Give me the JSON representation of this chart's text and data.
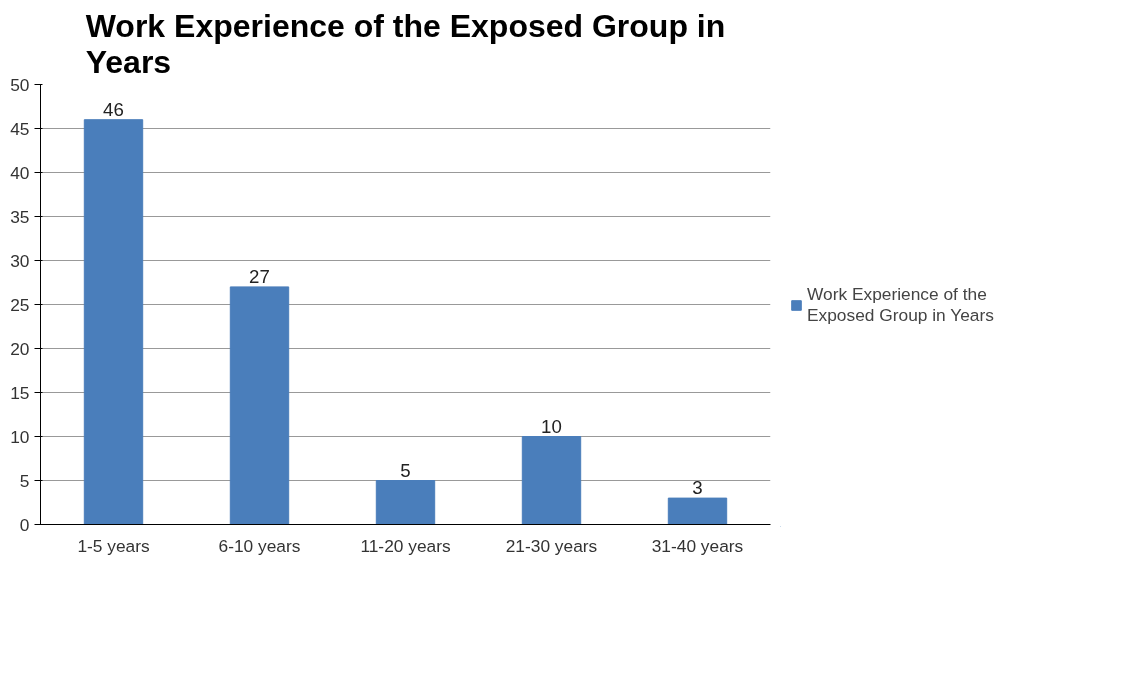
{
  "chart_data": {
    "type": "bar",
    "title": "Work Experience of the Exposed Group in Years",
    "categories": [
      "1-5 years",
      "6-10 years",
      "11-20 years",
      "21-30 years",
      "31-40 years"
    ],
    "series": [
      {
        "name": "Work Experience of the Exposed Group in Years",
        "color": "#4a7ebb",
        "values": [
          46,
          27,
          5,
          10,
          3
        ]
      }
    ],
    "ylim": [
      0,
      50
    ],
    "yticks": [
      0,
      5,
      10,
      15,
      20,
      25,
      30,
      35,
      40,
      45,
      50
    ],
    "grid": "y",
    "legend": "right",
    "data_labels": true
  }
}
